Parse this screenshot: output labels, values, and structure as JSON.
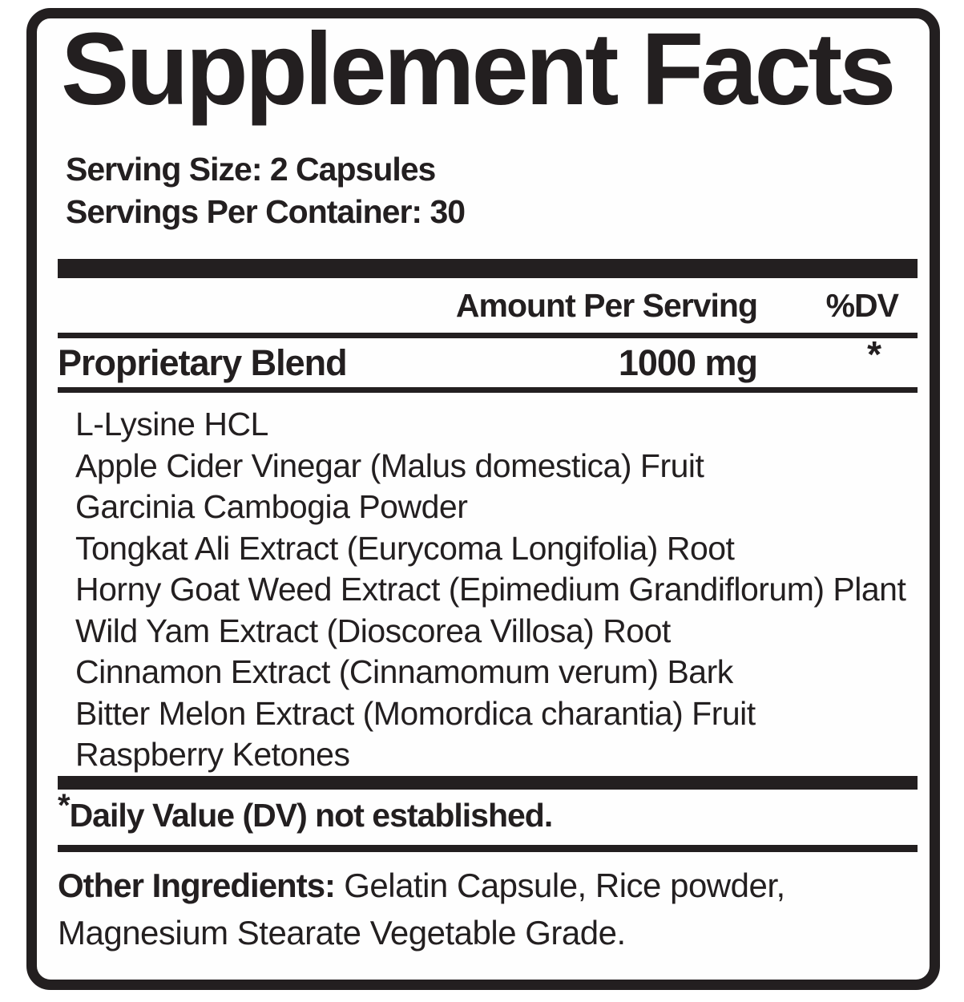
{
  "colors": {
    "ink": "#231f20",
    "paper": "#ffffff"
  },
  "label": {
    "title": "Supplement Facts",
    "serving_size": "Serving Size: 2 Capsules",
    "servings_per_container": "Servings Per Container: 30",
    "header": {
      "amount": "Amount Per Serving",
      "dv": "%DV"
    },
    "blend": {
      "name": "Proprietary Blend",
      "amount": "1000 mg",
      "dv": "*"
    },
    "ingredients": [
      "L-Lysine HCL",
      "Apple Cider Vinegar (Malus domestica) Fruit",
      "Garcinia Cambogia Powder",
      "Tongkat Ali Extract (Eurycoma Longifolia) Root",
      "Horny Goat Weed Extract (Epimedium Grandiflorum) Plant",
      "Wild Yam Extract (Dioscorea Villosa) Root",
      "Cinnamon Extract (Cinnamomum verum) Bark",
      "Bitter Melon Extract (Momordica charantia) Fruit",
      "Raspberry Ketones"
    ],
    "footnote": {
      "symbol": "*",
      "text": "Daily Value (DV) not established."
    },
    "other_ingredients": {
      "label": "Other Ingredients:",
      "text": "Gelatin Capsule, Rice powder, Magnesium Stearate Vegetable Grade."
    }
  }
}
